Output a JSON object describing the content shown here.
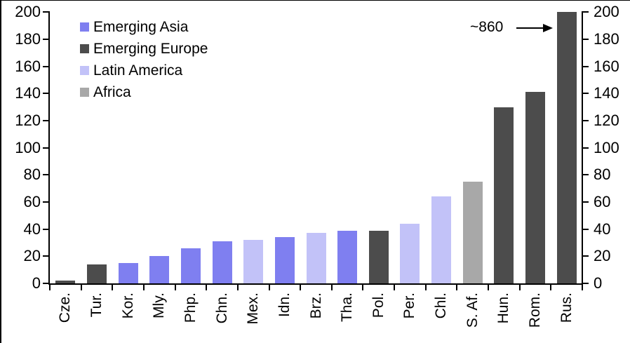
{
  "chart_data": {
    "type": "bar",
    "title": "",
    "xlabel": "",
    "ylabel": "",
    "ylim": [
      0,
      200
    ],
    "yticks": [
      0,
      20,
      40,
      60,
      80,
      100,
      120,
      140,
      160,
      180,
      200
    ],
    "grid": false,
    "dual_y_axis": true,
    "legend_position": "top-left",
    "axis_color": "#000000",
    "background_color": "#ffffff",
    "legend": [
      {
        "label": "Emerging Asia",
        "color": "#7f7ff0"
      },
      {
        "label": "Emerging Europe",
        "color": "#4c4c4c"
      },
      {
        "label": "Latin America",
        "color": "#c2c2f8"
      },
      {
        "label": "Africa",
        "color": "#a8a8a8"
      }
    ],
    "bars": [
      {
        "label": "Cze.",
        "value": 2,
        "region": "Emerging Europe"
      },
      {
        "label": "Tur.",
        "value": 14,
        "region": "Emerging Europe"
      },
      {
        "label": "Kor.",
        "value": 15,
        "region": "Emerging Asia"
      },
      {
        "label": "Mly.",
        "value": 20,
        "region": "Emerging Asia"
      },
      {
        "label": "Php.",
        "value": 26,
        "region": "Emerging Asia"
      },
      {
        "label": "Chn.",
        "value": 31,
        "region": "Emerging Asia"
      },
      {
        "label": "Mex.",
        "value": 32,
        "region": "Latin America"
      },
      {
        "label": "Idn.",
        "value": 34,
        "region": "Emerging Asia"
      },
      {
        "label": "Brz.",
        "value": 37,
        "region": "Latin America"
      },
      {
        "label": "Tha.",
        "value": 39,
        "region": "Emerging Asia"
      },
      {
        "label": "Pol.",
        "value": 39,
        "region": "Emerging Europe"
      },
      {
        "label": "Per.",
        "value": 44,
        "region": "Latin America"
      },
      {
        "label": "Chl.",
        "value": 64,
        "region": "Latin America"
      },
      {
        "label": "S. Af.",
        "value": 75,
        "region": "Africa"
      },
      {
        "label": "Hun.",
        "value": 130,
        "region": "Emerging Europe"
      },
      {
        "label": "Rom.",
        "value": 141,
        "region": "Emerging Europe"
      },
      {
        "label": "Rus.",
        "value": 200,
        "region": "Emerging Europe",
        "clipped_at_axis_max": true,
        "actual_value_label": "~860"
      }
    ],
    "annotation": {
      "text": "~860",
      "points_to": "Rus."
    }
  }
}
